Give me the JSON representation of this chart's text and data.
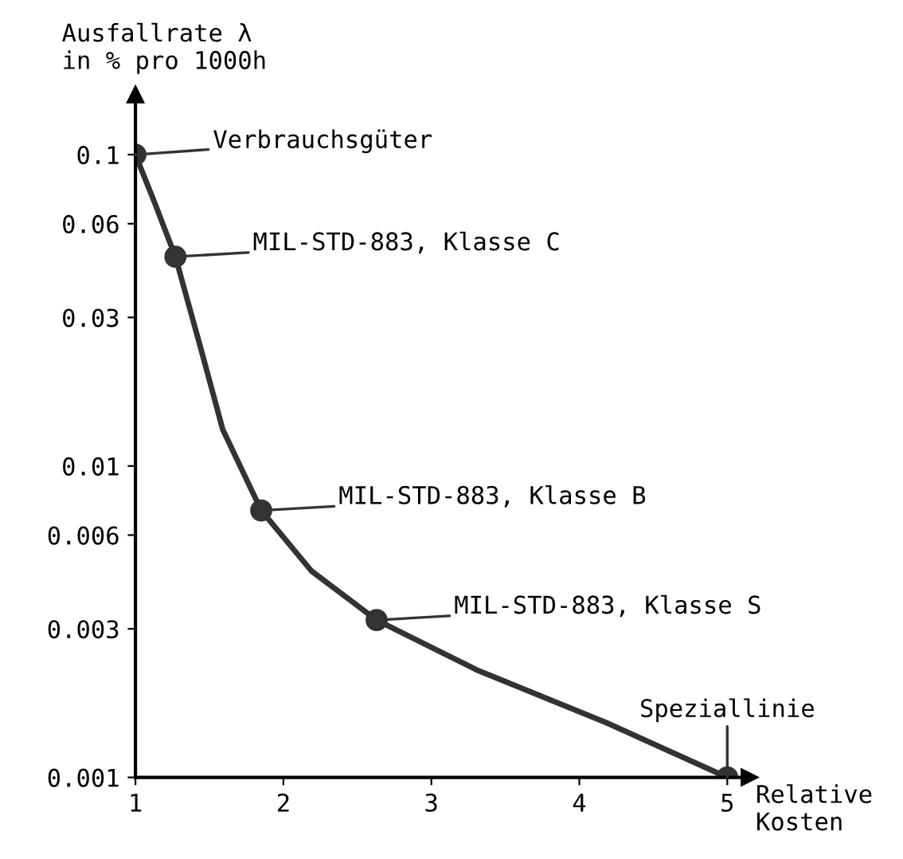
{
  "chart_data": {
    "type": "line",
    "xlabel": "Relative\nKosten",
    "ylabel": "Ausfallrate λ\nin % pro 1000h",
    "series": [
      {
        "color": "#333333",
        "marker": "none",
        "x": [
          1,
          1.13,
          1.27,
          1.43,
          1.59,
          1.85,
          2.19,
          2.63,
          3.32,
          4.18,
          5
        ],
        "values": [
          0.1,
          0.07,
          0.047,
          0.025,
          0.0131,
          0.0072,
          0.0046,
          0.0032,
          0.0022,
          0.0015,
          0.001
        ]
      },
      {
        "type": "scatter",
        "marker": "circle",
        "color": "#333333",
        "x": [
          1,
          1.27,
          1.85,
          2.63,
          5
        ],
        "values": [
          0.1,
          0.047,
          0.0072,
          0.0032,
          0.001
        ]
      }
    ],
    "annotations": [
      "Verbrauchsgüter",
      "MIL-STD-883, Klasse C",
      "MIL-STD-883, Klasse B",
      "MIL-STD-883, Klasse S",
      {
        "text": "Speziallinie",
        "x": 5,
        "y": 0.001
      }
    ],
    "log": "y",
    "xlim": [
      1,
      5.15
    ],
    "ylim": [
      0.001,
      0.156
    ],
    "xticks": [
      1,
      2,
      3,
      4,
      5
    ],
    "yticks": [
      0.1,
      0.06,
      0.03,
      0.01,
      0.006,
      0.003,
      0.001
    ],
    "line_style": "solid",
    "grid": false,
    "legend": false
  }
}
